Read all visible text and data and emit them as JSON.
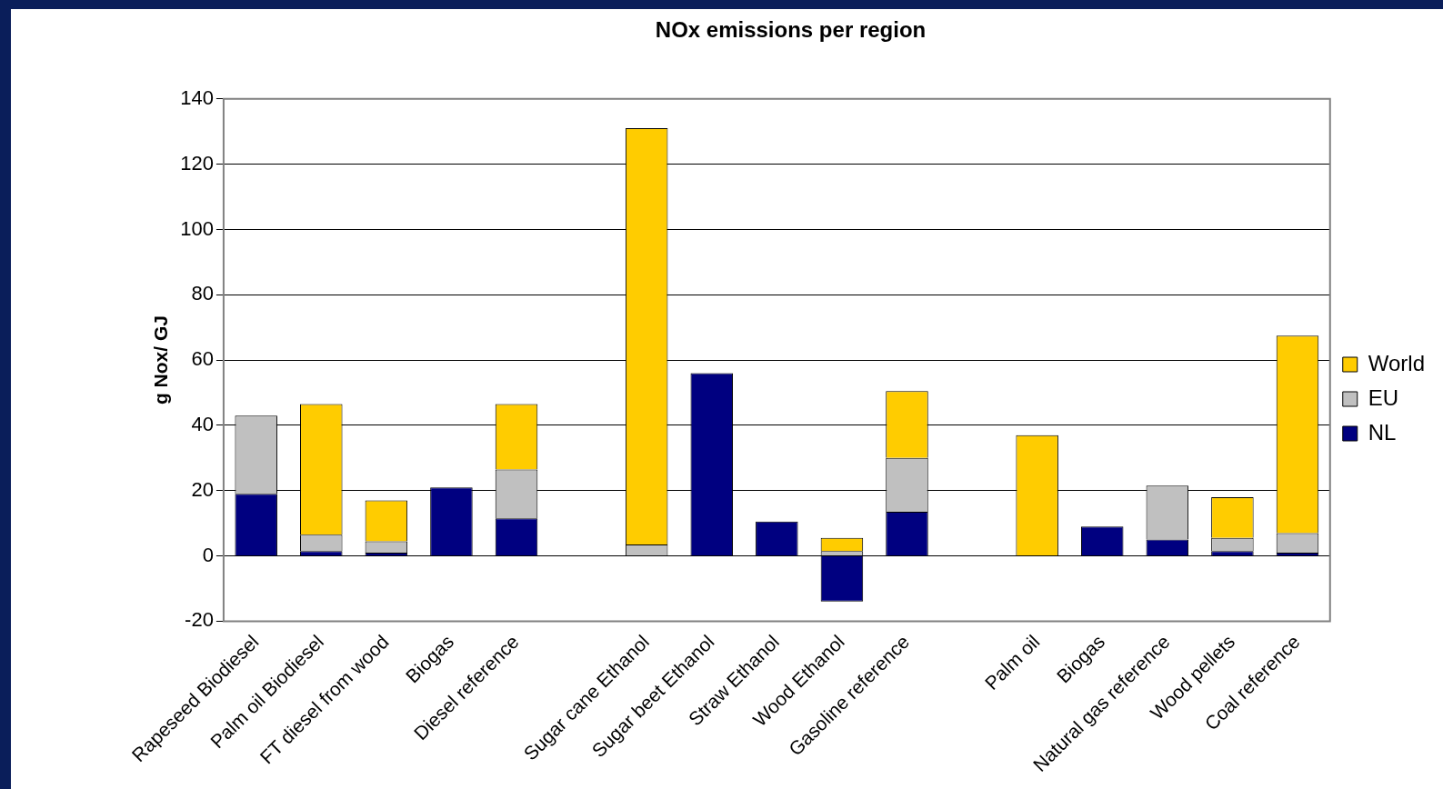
{
  "chart_data": {
    "type": "bar",
    "title": "NOx emissions per region",
    "ylabel": "g Nox/ GJ",
    "categories": [
      "Rapeseed Biodiesel",
      "Palm oil Biodiesel",
      "FT diesel from wood",
      "Biogas",
      "Diesel reference",
      null,
      "Sugar cane Ethanol",
      "Sugar beet Ethanol",
      "Straw Ethanol",
      "Wood Ethanol",
      "Gasoline reference",
      null,
      "Palm oil",
      "Biogas",
      "Natural gas reference",
      "Wood pellets",
      "Coal reference"
    ],
    "series": [
      {
        "name": "NL",
        "color": "#000080",
        "values": [
          19,
          1.5,
          1,
          21,
          11.5,
          null,
          null,
          56,
          10.5,
          -14,
          13.5,
          null,
          null,
          9,
          5,
          1.5,
          1
        ]
      },
      {
        "name": "EU",
        "color": "#c0c0c0",
        "values": [
          24,
          5,
          3.5,
          null,
          15,
          null,
          3.5,
          null,
          null,
          1.5,
          16.5,
          null,
          null,
          null,
          16.5,
          4,
          6
        ]
      },
      {
        "name": "World",
        "color": "#ffcc00",
        "values": [
          null,
          40,
          12.5,
          null,
          20,
          null,
          127.5,
          null,
          null,
          4,
          20.5,
          null,
          37,
          null,
          null,
          12.5,
          60.5
        ]
      }
    ],
    "stacked": true,
    "ylim": [
      -20,
      140
    ],
    "yticks": [
      -20,
      0,
      20,
      40,
      60,
      80,
      100,
      120,
      140
    ],
    "grid": "y",
    "legend": "right"
  }
}
